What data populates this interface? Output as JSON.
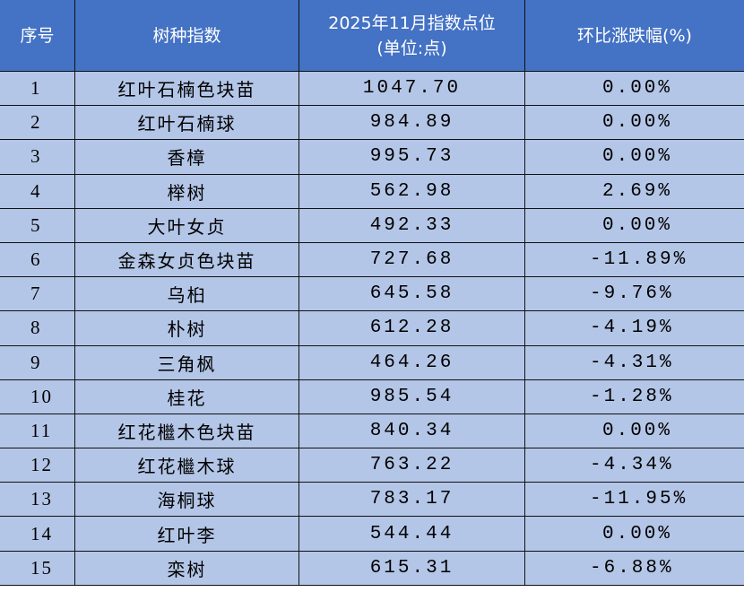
{
  "table": {
    "headers": [
      "序号",
      "树种指数",
      "2025年11月指数点位",
      "(单位:点)",
      "环比涨跌幅(%)"
    ],
    "rows": [
      {
        "no": "1",
        "name": "红叶石楠色块苗",
        "index": "1047.70",
        "change": "0.00%"
      },
      {
        "no": "2",
        "name": "红叶石楠球",
        "index": "984.89",
        "change": "0.00%"
      },
      {
        "no": "3",
        "name": "香樟",
        "index": "995.73",
        "change": "0.00%"
      },
      {
        "no": "4",
        "name": "榉树",
        "index": "562.98",
        "change": "2.69%"
      },
      {
        "no": "5",
        "name": "大叶女贞",
        "index": "492.33",
        "change": "0.00%"
      },
      {
        "no": "6",
        "name": "金森女贞色块苗",
        "index": "727.68",
        "change": "-11.89%"
      },
      {
        "no": "7",
        "name": "乌桕",
        "index": "645.58",
        "change": "-9.76%"
      },
      {
        "no": "8",
        "name": "朴树",
        "index": "612.28",
        "change": "-4.19%"
      },
      {
        "no": "9",
        "name": "三角枫",
        "index": "464.26",
        "change": "-4.31%"
      },
      {
        "no": "10",
        "name": "桂花",
        "index": "985.54",
        "change": "-1.28%"
      },
      {
        "no": "11",
        "name": "红花檵木色块苗",
        "index": "840.34",
        "change": "0.00%"
      },
      {
        "no": "12",
        "name": "红花檵木球",
        "index": "763.22",
        "change": "-4.34%"
      },
      {
        "no": "13",
        "name": "海桐球",
        "index": "783.17",
        "change": "-11.95%"
      },
      {
        "no": "14",
        "name": "红叶李",
        "index": "544.44",
        "change": "0.00%"
      },
      {
        "no": "15",
        "name": "栾树",
        "index": "615.31",
        "change": "-6.88%"
      }
    ]
  },
  "colors": {
    "header_bg": "#4472c4",
    "row_bg": "#b4c6e7",
    "header_text": "#ffffff"
  }
}
